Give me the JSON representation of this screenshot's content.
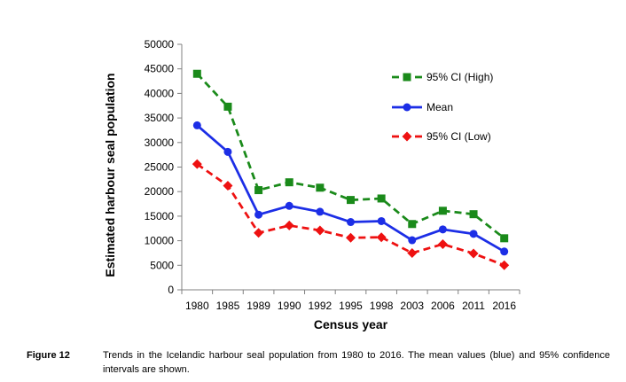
{
  "chart_data": {
    "type": "line",
    "title": "",
    "xlabel": "Census year",
    "ylabel": "Estimated harbour seal population",
    "categories": [
      "1980",
      "1985",
      "1989",
      "1990",
      "1992",
      "1995",
      "1998",
      "2003",
      "2006",
      "2011",
      "2016"
    ],
    "ylim": [
      0,
      50000
    ],
    "yticks": [
      0,
      5000,
      10000,
      15000,
      20000,
      25000,
      30000,
      35000,
      40000,
      45000,
      50000
    ],
    "grid": false,
    "legend_position": "right",
    "series": [
      {
        "name": "95% CI (High)",
        "values": [
          44000,
          37300,
          20300,
          21900,
          20800,
          18300,
          18600,
          13400,
          16100,
          15400,
          10500
        ],
        "color": "#1a8a1a",
        "dash": "dashed",
        "marker": "square"
      },
      {
        "name": "Mean",
        "values": [
          33500,
          28100,
          15300,
          17100,
          15900,
          13800,
          14000,
          10100,
          12300,
          11400,
          7800
        ],
        "color": "#1c2ee6",
        "dash": "solid",
        "marker": "circle"
      },
      {
        "name": "95% CI (Low)",
        "values": [
          25600,
          21200,
          11600,
          13100,
          12100,
          10600,
          10700,
          7500,
          9300,
          7400,
          5000
        ],
        "color": "#ee1111",
        "dash": "dashed",
        "marker": "diamond"
      }
    ]
  },
  "caption": {
    "label": "Figure 12",
    "text": "Trends in the Icelandic harbour seal population from 1980 to 2016. The mean values (blue) and 95% confidence intervals are shown."
  }
}
